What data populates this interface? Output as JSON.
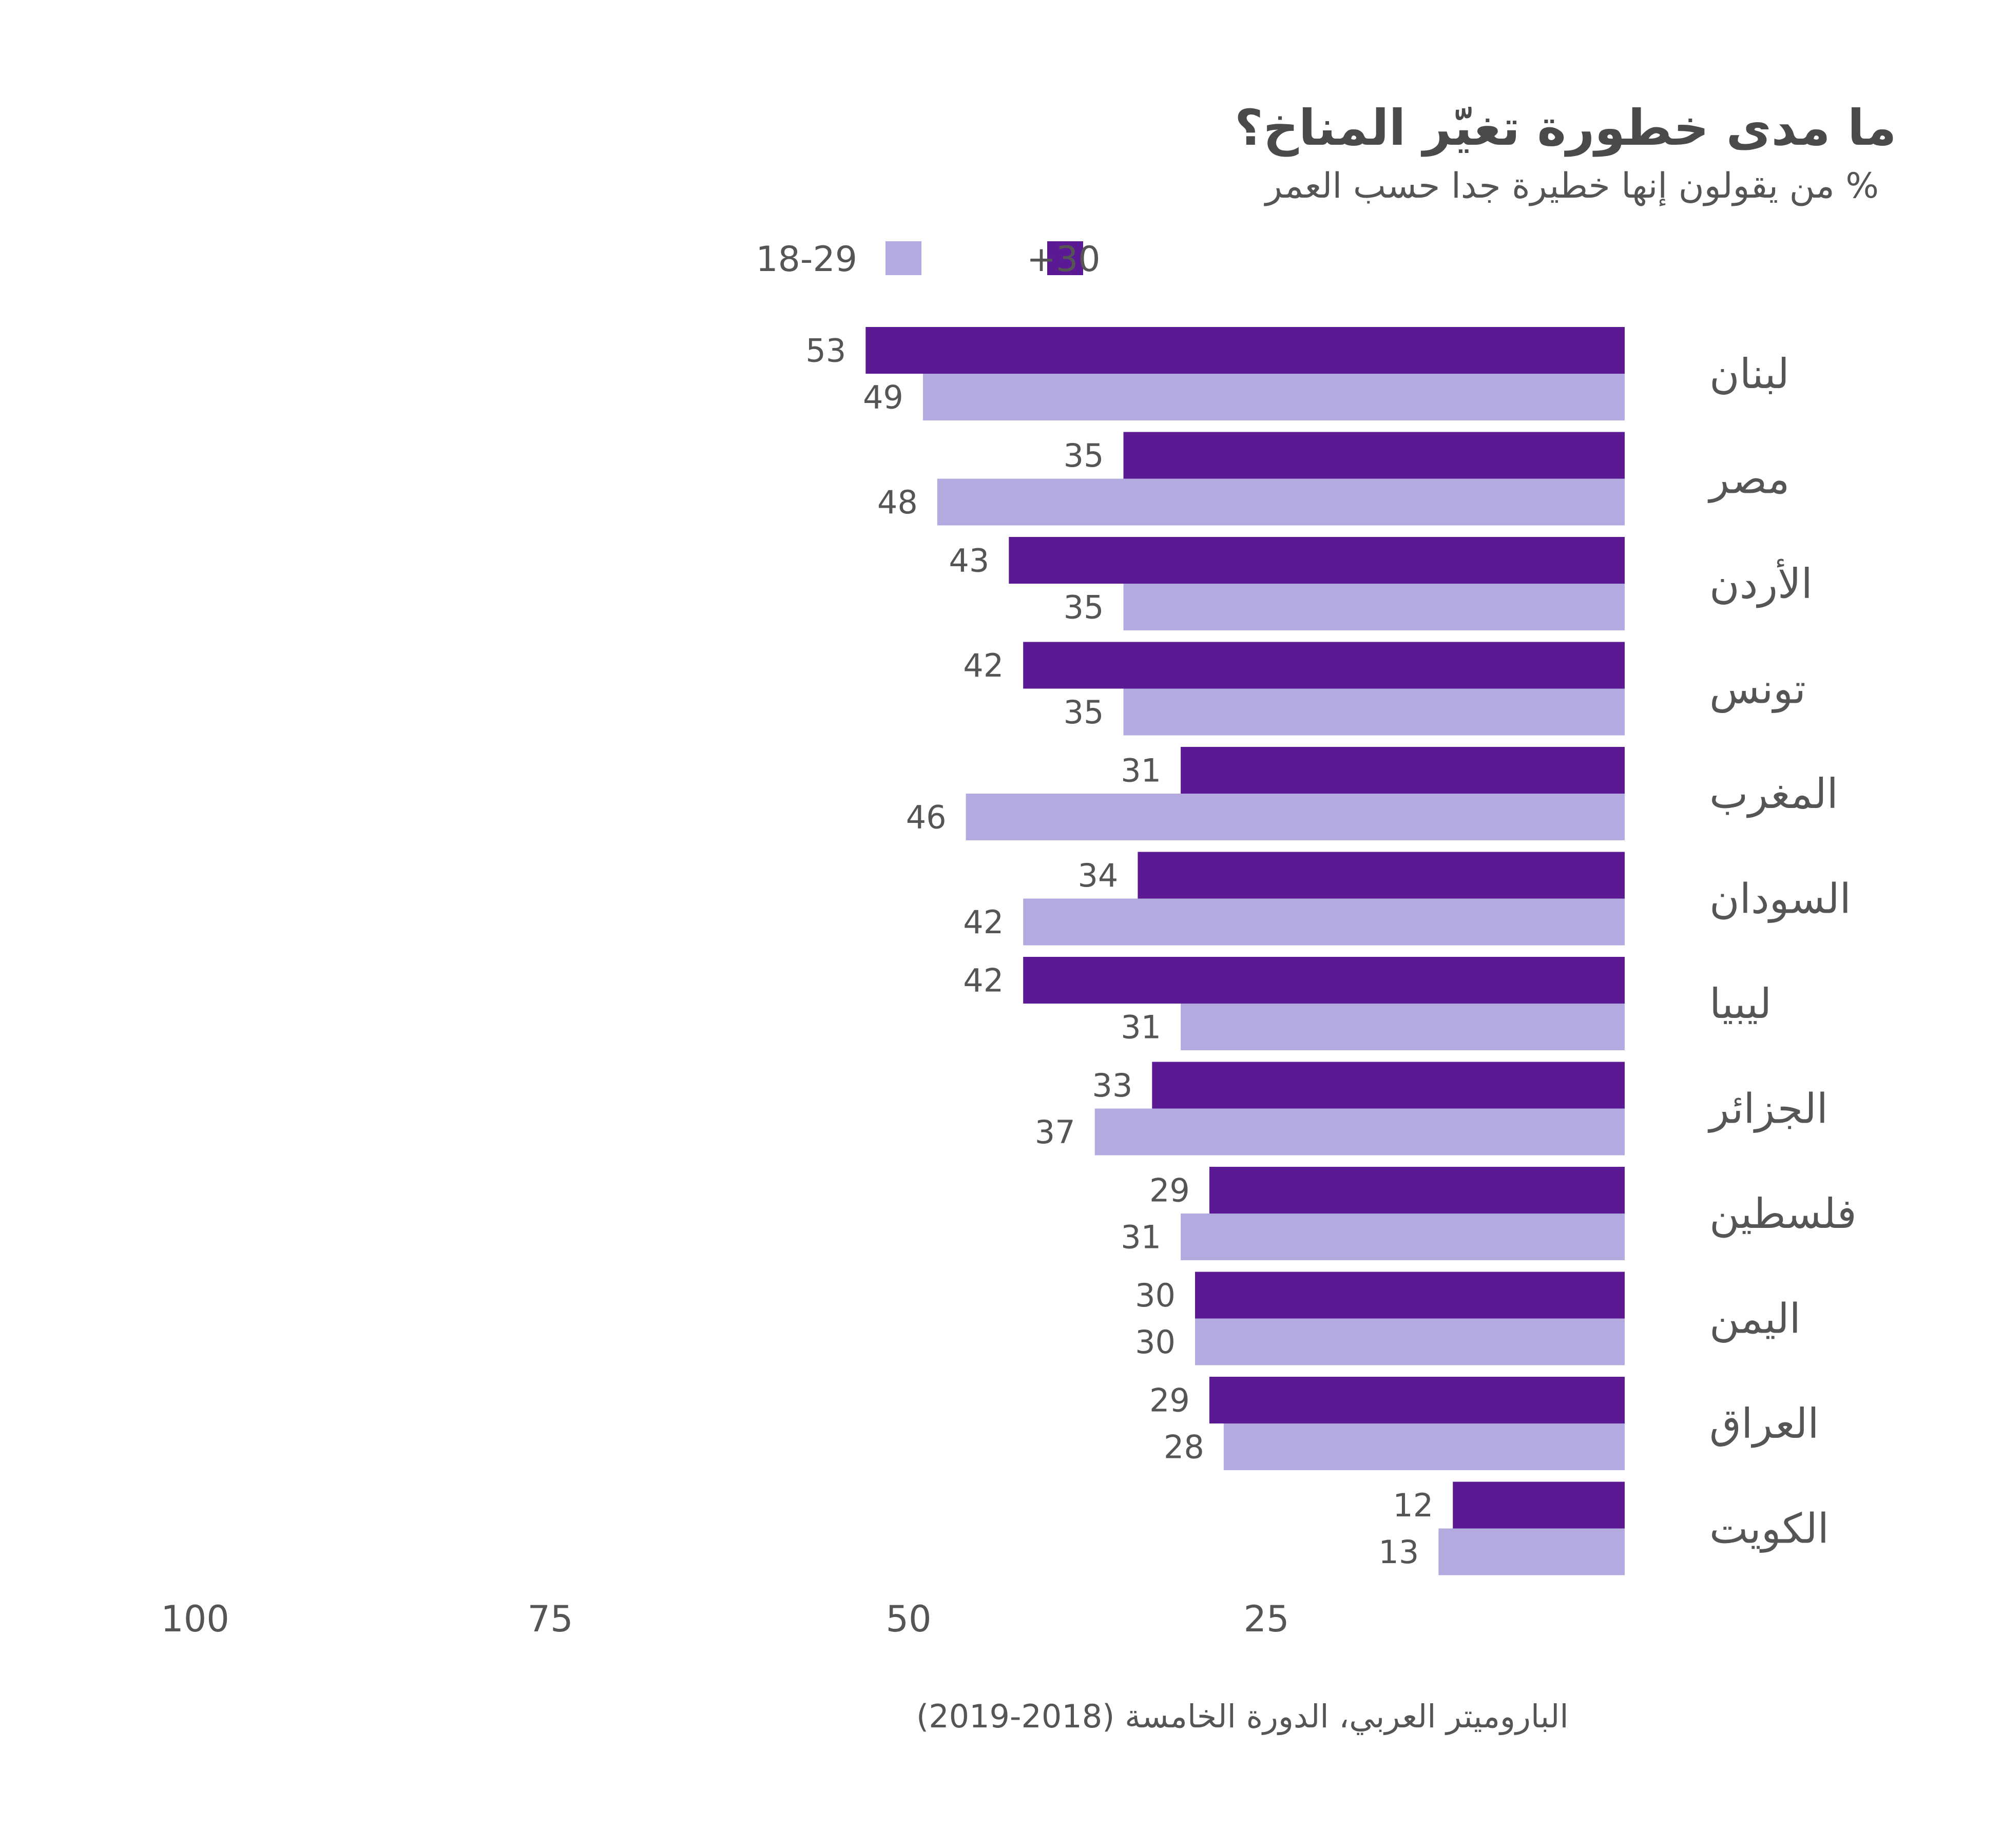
{
  "chart_data": {
    "type": "bar",
    "orientation": "horizontal",
    "title": "ما مدى خطورة تغيّر المناخ؟",
    "subtitle": "% من يقولون إنها خطيرة جدا حسب العمر",
    "categories": [
      "لبنان",
      "مصر",
      "الأردن",
      "تونس",
      "المغرب",
      "السودان",
      "ليبيا",
      "الجزائر",
      "فلسطين",
      "اليمن",
      "العراق",
      "الكويت"
    ],
    "series": [
      {
        "name": "30+",
        "color": "#5b1a94",
        "values": [
          53,
          35,
          43,
          42,
          31,
          34,
          42,
          33,
          29,
          30,
          29,
          12
        ]
      },
      {
        "name": "18-29",
        "color": "#b3abe0",
        "values": [
          49,
          48,
          35,
          35,
          46,
          42,
          31,
          37,
          31,
          30,
          28,
          13
        ]
      }
    ],
    "x_ticks": [
      "100",
      "75",
      "50",
      "25"
    ],
    "xlim": [
      0,
      100
    ],
    "x_reversed": true,
    "grid": false,
    "legend_position": "top"
  },
  "source": "الباروميتر العربي، الدورة الخامسة (2018-2019)"
}
